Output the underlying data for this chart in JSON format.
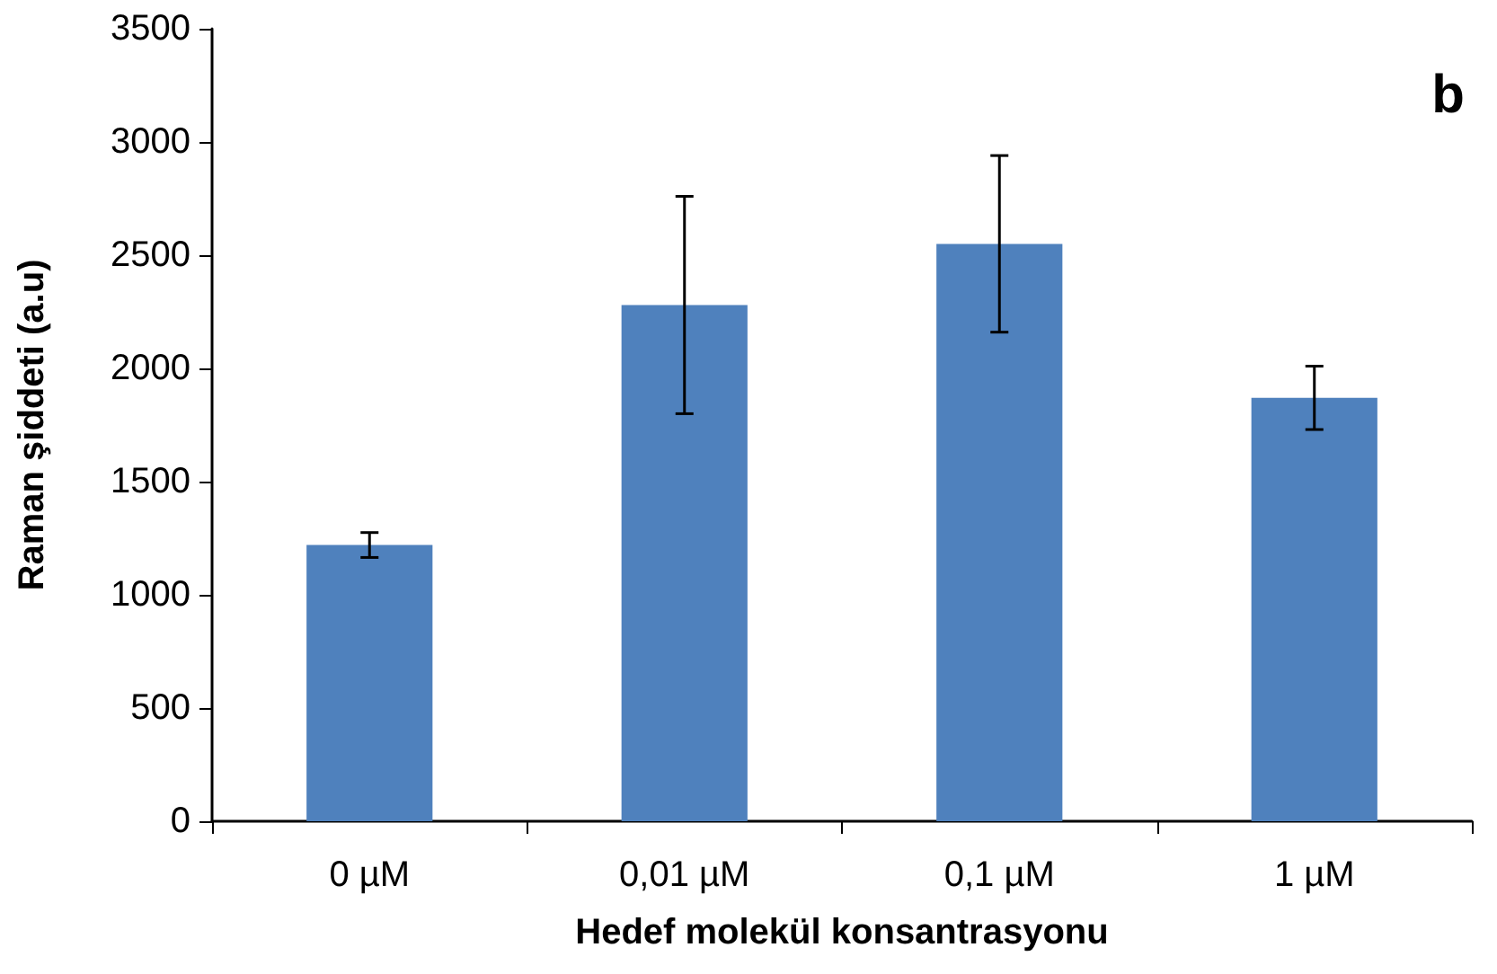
{
  "chart_data": {
    "type": "bar",
    "xlabel": "Hedef molekül konsantrasyonu",
    "ylabel": "Raman şiddeti (a.u)",
    "categories": [
      "0 µM",
      "0,01 µM",
      "0,1 µM",
      "1 µM"
    ],
    "values": [
      1220,
      2280,
      2550,
      1870
    ],
    "errors": [
      55,
      480,
      390,
      140
    ],
    "color": "#4f81bd",
    "ylim": [
      0,
      3500
    ],
    "yticks": [
      0,
      500,
      1000,
      1500,
      2000,
      2500,
      3000,
      3500
    ],
    "grid": false,
    "annotations": [
      "b"
    ]
  }
}
